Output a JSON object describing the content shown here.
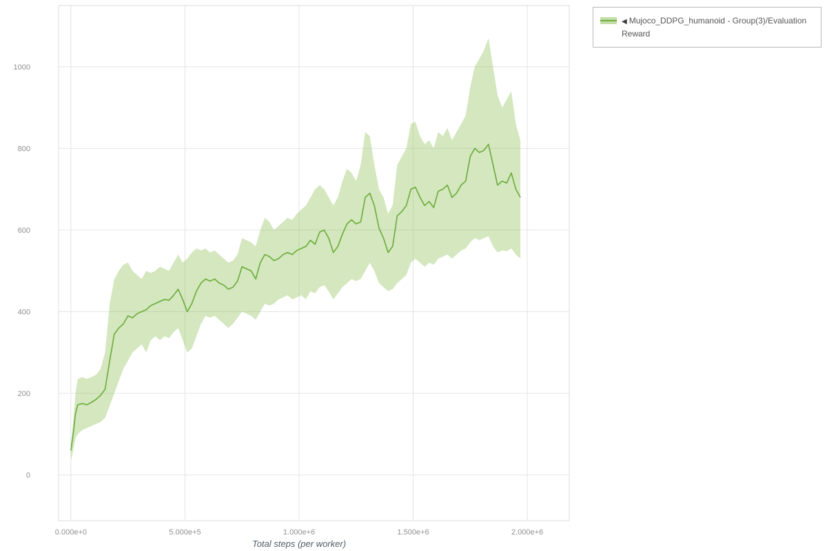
{
  "colors": {
    "line": "#6fae3e",
    "band": "#8fbf56",
    "band_opacity": 0.38,
    "grid": "#e4e4e4",
    "frame": "#dcdcdc",
    "tick_text": "#8f8f8f",
    "axis_label": "#4f5b66",
    "legend_border": "#b8b8b8",
    "legend_text": "#555555"
  },
  "legend": {
    "collapse_icon": "◀",
    "label": "Mujoco_DDPG_humanoid - Group(3)/Evaluation Reward"
  },
  "chart_data": {
    "type": "line",
    "title": "",
    "xlabel": "Total steps (per worker)",
    "ylabel": "",
    "grid": true,
    "legend_position": "top-right",
    "xlim": [
      -54000,
      2184000
    ],
    "ylim": [
      -112,
      1150
    ],
    "xticks": [
      {
        "value": 0,
        "label": "0.000e+0"
      },
      {
        "value": 500000,
        "label": "5.000e+5"
      },
      {
        "value": 1000000,
        "label": "1.000e+6"
      },
      {
        "value": 1500000,
        "label": "1.500e+6"
      },
      {
        "value": 2000000,
        "label": "2.000e+6"
      }
    ],
    "yticks": [
      {
        "value": 0,
        "label": "0"
      },
      {
        "value": 200,
        "label": "200"
      },
      {
        "value": 400,
        "label": "400"
      },
      {
        "value": 600,
        "label": "600"
      },
      {
        "value": 800,
        "label": "800"
      },
      {
        "value": 1000,
        "label": "1000"
      }
    ],
    "series": [
      {
        "name": "Mujoco_DDPG_humanoid - Group(3)/Evaluation Reward",
        "x": [
          0,
          10000,
          20000,
          30000,
          50000,
          70000,
          90000,
          110000,
          130000,
          150000,
          170000,
          190000,
          210000,
          230000,
          250000,
          270000,
          290000,
          310000,
          330000,
          350000,
          370000,
          390000,
          410000,
          430000,
          450000,
          470000,
          490000,
          510000,
          530000,
          550000,
          570000,
          590000,
          610000,
          630000,
          650000,
          670000,
          690000,
          710000,
          730000,
          750000,
          770000,
          790000,
          810000,
          830000,
          850000,
          870000,
          890000,
          910000,
          930000,
          950000,
          970000,
          990000,
          1010000,
          1030000,
          1050000,
          1070000,
          1090000,
          1110000,
          1130000,
          1150000,
          1170000,
          1190000,
          1210000,
          1230000,
          1250000,
          1270000,
          1290000,
          1310000,
          1330000,
          1350000,
          1370000,
          1390000,
          1410000,
          1430000,
          1450000,
          1470000,
          1490000,
          1510000,
          1530000,
          1550000,
          1570000,
          1590000,
          1610000,
          1630000,
          1650000,
          1670000,
          1690000,
          1710000,
          1730000,
          1750000,
          1770000,
          1790000,
          1810000,
          1830000,
          1850000,
          1870000,
          1890000,
          1910000,
          1930000,
          1950000,
          1970000
        ],
        "mean": [
          60,
          100,
          150,
          172,
          175,
          172,
          178,
          185,
          195,
          210,
          280,
          345,
          360,
          370,
          390,
          385,
          395,
          400,
          405,
          415,
          420,
          425,
          430,
          428,
          440,
          455,
          430,
          400,
          420,
          450,
          470,
          480,
          475,
          480,
          470,
          465,
          455,
          460,
          475,
          510,
          505,
          500,
          480,
          520,
          540,
          535,
          525,
          530,
          540,
          545,
          540,
          550,
          555,
          560,
          575,
          565,
          595,
          600,
          580,
          545,
          560,
          590,
          615,
          625,
          615,
          620,
          680,
          690,
          660,
          605,
          580,
          545,
          560,
          635,
          645,
          660,
          700,
          705,
          680,
          660,
          670,
          655,
          695,
          700,
          710,
          680,
          690,
          710,
          720,
          780,
          800,
          790,
          795,
          810,
          760,
          710,
          720,
          715,
          740,
          700,
          680
        ],
        "lower": [
          35,
          60,
          90,
          100,
          110,
          115,
          120,
          125,
          130,
          140,
          170,
          200,
          230,
          260,
          280,
          300,
          310,
          320,
          300,
          330,
          340,
          330,
          340,
          335,
          350,
          360,
          330,
          300,
          310,
          340,
          370,
          390,
          385,
          390,
          380,
          370,
          360,
          370,
          385,
          400,
          395,
          390,
          380,
          400,
          420,
          415,
          420,
          430,
          435,
          440,
          430,
          435,
          440,
          430,
          450,
          445,
          460,
          465,
          450,
          430,
          445,
          460,
          470,
          480,
          475,
          480,
          500,
          520,
          500,
          470,
          460,
          450,
          455,
          470,
          480,
          490,
          520,
          530,
          520,
          510,
          520,
          515,
          530,
          535,
          540,
          530,
          540,
          550,
          555,
          570,
          580,
          575,
          580,
          585,
          560,
          545,
          550,
          548,
          555,
          540,
          530
        ],
        "upper": [
          75,
          130,
          200,
          235,
          240,
          235,
          240,
          245,
          260,
          300,
          420,
          480,
          500,
          515,
          520,
          500,
          490,
          480,
          500,
          495,
          500,
          510,
          505,
          500,
          520,
          540,
          520,
          530,
          545,
          555,
          550,
          555,
          545,
          550,
          540,
          530,
          520,
          525,
          540,
          580,
          575,
          570,
          560,
          600,
          630,
          620,
          600,
          610,
          620,
          630,
          625,
          640,
          650,
          660,
          680,
          700,
          710,
          700,
          680,
          660,
          680,
          720,
          750,
          740,
          720,
          760,
          840,
          830,
          760,
          700,
          680,
          640,
          660,
          760,
          780,
          800,
          860,
          865,
          830,
          810,
          820,
          800,
          840,
          830,
          850,
          820,
          840,
          860,
          880,
          950,
          1000,
          1020,
          1040,
          1070,
          1000,
          930,
          900,
          920,
          940,
          860,
          820
        ]
      }
    ]
  }
}
